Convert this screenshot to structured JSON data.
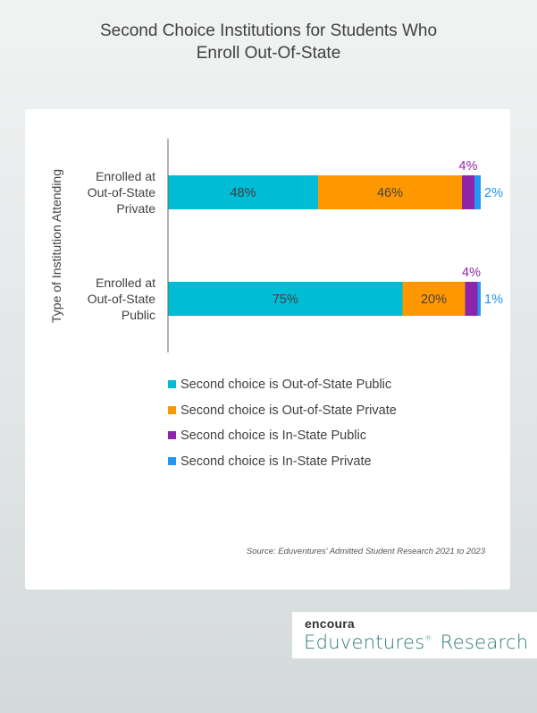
{
  "title": "Second Choice Institutions for Students Who\nEnroll Out-Of-State",
  "source": "Source: Eduventures' Admitted Student Research 2021 to 2023",
  "logo": {
    "top": "encoura",
    "main": "Eduventures",
    "sup": "®",
    "suffix": " Research"
  },
  "colors": {
    "out_public": "#00bcd4",
    "out_private": "#ff9800",
    "in_public": "#8e24aa",
    "in_private": "#2196f3"
  },
  "chart_data": {
    "type": "bar",
    "orientation": "horizontal",
    "stacked": true,
    "ylabel": "Type of Institution Attending",
    "categories": [
      [
        "Enrolled at",
        "Out-of-State",
        "Private"
      ],
      [
        "Enrolled at",
        "Out-of-State",
        "Public"
      ]
    ],
    "series": [
      {
        "name": "Second choice is Out-of-State Public",
        "color": "#00bcd4",
        "values": [
          48,
          75
        ],
        "labels": [
          "48%",
          "75%"
        ]
      },
      {
        "name": "Second choice is Out-of-State Private",
        "color": "#ff9800",
        "values": [
          46,
          20
        ],
        "labels": [
          "46%",
          "20%"
        ]
      },
      {
        "name": "Second choice is In-State Public",
        "color": "#8e24aa",
        "values": [
          4,
          4
        ],
        "labels": [
          "4%",
          "4%"
        ]
      },
      {
        "name": "Second choice is In-State Private",
        "color": "#2196f3",
        "values": [
          2,
          1
        ],
        "labels": [
          "2%",
          "1%"
        ]
      }
    ],
    "legend_position": "bottom"
  }
}
